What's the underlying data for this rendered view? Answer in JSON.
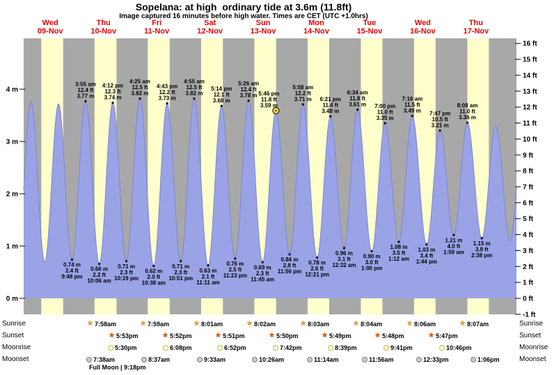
{
  "chart_data": {
    "type": "area",
    "title": "Sopelana: at high  ordinary tide at 3.6m (11.8ft)",
    "subtitle": "Image captured 16 minutes before high water. Times are CET (UTC +1.0hrs)",
    "ylabel_left_unit": "m",
    "ylabel_right_unit": "ft",
    "ylim_m": [
      0,
      4
    ],
    "y_axis_left_ticks": [
      "4 m",
      "3 m",
      "2 m",
      "1 m",
      "0 m"
    ],
    "y_axis_right_ticks": [
      "16 ft",
      "15 ft",
      "14 ft",
      "13 ft",
      "12 ft",
      "11 ft",
      "10 ft",
      "9 ft",
      "8 ft",
      "7 ft",
      "6 ft",
      "5 ft",
      "4 ft",
      "3 ft",
      "2 ft",
      "1 ft",
      "0 ft",
      "-1 ft"
    ],
    "days": [
      {
        "dow": "Wed",
        "date": "09-Nov"
      },
      {
        "dow": "Thu",
        "date": "10-Nov"
      },
      {
        "dow": "Fri",
        "date": "11-Nov"
      },
      {
        "dow": "Sat",
        "date": "12-Nov"
      },
      {
        "dow": "Sun",
        "date": "13-Nov"
      },
      {
        "dow": "Mon",
        "date": "14-Nov"
      },
      {
        "dow": "Tue",
        "date": "15-Nov"
      },
      {
        "dow": "Wed",
        "date": "16-Nov"
      },
      {
        "dow": "Thu",
        "date": "17-Nov"
      }
    ],
    "tide_events": [
      {
        "day": 0,
        "time": "9:48 pm",
        "m": "0.74",
        "ft": "2.4",
        "type": "low"
      },
      {
        "day": 1,
        "time": "3:55 am",
        "m": "3.77",
        "ft": "12.4",
        "type": "high"
      },
      {
        "day": 1,
        "time": "10:06 am",
        "m": "0.66",
        "ft": "2.2",
        "type": "low"
      },
      {
        "day": 1,
        "time": "4:12 pm",
        "m": "3.74",
        "ft": "12.3",
        "type": "high"
      },
      {
        "day": 1,
        "time": "10:19 pm",
        "m": "0.71",
        "ft": "2.3",
        "type": "low"
      },
      {
        "day": 2,
        "time": "4:25 am",
        "m": "3.82",
        "ft": "12.5",
        "type": "high"
      },
      {
        "day": 2,
        "time": "10:38 am",
        "m": "0.62",
        "ft": "2.0",
        "type": "low"
      },
      {
        "day": 2,
        "time": "4:43 pm",
        "m": "3.73",
        "ft": "12.2",
        "type": "high"
      },
      {
        "day": 2,
        "time": "10:51 pm",
        "m": "0.71",
        "ft": "2.3",
        "type": "low"
      },
      {
        "day": 3,
        "time": "4:55 am",
        "m": "3.82",
        "ft": "12.5",
        "type": "high"
      },
      {
        "day": 3,
        "time": "11:11 am",
        "m": "0.63",
        "ft": "2.1",
        "type": "low"
      },
      {
        "day": 3,
        "time": "5:14 pm",
        "m": "3.68",
        "ft": "12.1",
        "type": "high"
      },
      {
        "day": 3,
        "time": "11:23 pm",
        "m": "0.76",
        "ft": "2.5",
        "type": "low"
      },
      {
        "day": 4,
        "time": "5:26 am",
        "m": "3.78",
        "ft": "12.4",
        "type": "high"
      },
      {
        "day": 4,
        "time": "11:45 am",
        "m": "0.69",
        "ft": "2.3",
        "type": "low"
      },
      {
        "day": 4,
        "time": "5:46 pm",
        "m": "3.59",
        "ft": "11.8",
        "type": "high",
        "current": true
      },
      {
        "day": 4,
        "time": "11:56 pm",
        "m": "0.84",
        "ft": "2.8",
        "type": "low"
      },
      {
        "day": 5,
        "time": "5:58 am",
        "m": "3.71",
        "ft": "12.2",
        "type": "high"
      },
      {
        "day": 5,
        "time": "12:21 pm",
        "m": "0.78",
        "ft": "2.6",
        "type": "low"
      },
      {
        "day": 5,
        "time": "6:21 pm",
        "m": "3.48",
        "ft": "11.4",
        "type": "high"
      },
      {
        "day": 6,
        "time": "12:32 am",
        "m": "0.96",
        "ft": "3.1",
        "type": "low"
      },
      {
        "day": 6,
        "time": "6:34 am",
        "m": "3.61",
        "ft": "11.8",
        "type": "high"
      },
      {
        "day": 6,
        "time": "1:00 pm",
        "m": "0.90",
        "ft": "3.0",
        "type": "low"
      },
      {
        "day": 6,
        "time": "7:00 pm",
        "m": "3.35",
        "ft": "11.0",
        "type": "high"
      },
      {
        "day": 7,
        "time": "1:12 am",
        "m": "1.08",
        "ft": "3.5",
        "type": "low"
      },
      {
        "day": 7,
        "time": "7:16 am",
        "m": "3.49",
        "ft": "11.5",
        "type": "high"
      },
      {
        "day": 7,
        "time": "1:44 pm",
        "m": "1.03",
        "ft": "3.4",
        "type": "low"
      },
      {
        "day": 7,
        "time": "7:47 pm",
        "m": "3.21",
        "ft": "10.5",
        "type": "high"
      },
      {
        "day": 8,
        "time": "1:59 am",
        "m": "1.21",
        "ft": "4.0",
        "type": "low"
      },
      {
        "day": 8,
        "time": "8:08 am",
        "m": "3.36",
        "ft": "11.0",
        "type": "high"
      },
      {
        "day": 8,
        "time": "2:38 pm",
        "m": "1.15",
        "ft": "3.8",
        "type": "low"
      }
    ],
    "colors": {
      "plot_bg": "#a8a8a8",
      "daylight_band": "#ffffcc",
      "tide_fill": "#9aa3e6",
      "tide_stroke": "#7b85d4",
      "day_label": "#e80000",
      "current_marker_fill": "#ffe14d"
    }
  },
  "astro": {
    "rows": [
      {
        "id": "sunrise",
        "label": "Sunrise",
        "icon": "sunrise-star-icon",
        "events": [
          {
            "day": 1,
            "time": "7:58am"
          },
          {
            "day": 2,
            "time": "7:59am"
          },
          {
            "day": 3,
            "time": "8:01am"
          },
          {
            "day": 4,
            "time": "8:02am"
          },
          {
            "day": 5,
            "time": "8:03am"
          },
          {
            "day": 6,
            "time": "8:04am"
          },
          {
            "day": 7,
            "time": "8:06am"
          },
          {
            "day": 8,
            "time": "8:07am"
          }
        ]
      },
      {
        "id": "sunset",
        "label": "Sunset",
        "icon": "sunset-star-icon",
        "events": [
          {
            "day": 1,
            "time": "5:53pm"
          },
          {
            "day": 2,
            "time": "5:52pm"
          },
          {
            "day": 3,
            "time": "5:51pm"
          },
          {
            "day": 4,
            "time": "5:50pm"
          },
          {
            "day": 5,
            "time": "5:49pm"
          },
          {
            "day": 6,
            "time": "5:48pm"
          },
          {
            "day": 7,
            "time": "5:47pm"
          }
        ]
      },
      {
        "id": "moonrise",
        "label": "Moonrise",
        "icon": "moonrise-circle-icon",
        "events": [
          {
            "day": 1,
            "time": "5:30pm"
          },
          {
            "day": 2,
            "time": "6:08pm"
          },
          {
            "day": 3,
            "time": "6:52pm"
          },
          {
            "day": 4,
            "time": "7:42pm"
          },
          {
            "day": 5,
            "time": "8:39pm"
          },
          {
            "day": 6,
            "time": "9:41pm"
          },
          {
            "day": 7,
            "time": "10:46pm"
          }
        ]
      },
      {
        "id": "moonset",
        "label": "Moonset",
        "icon": "moonset-circle-icon",
        "events": [
          {
            "day": 1,
            "time": "7:38am"
          },
          {
            "day": 2,
            "time": "8:37am"
          },
          {
            "day": 3,
            "time": "9:33am"
          },
          {
            "day": 4,
            "time": "10:26am"
          },
          {
            "day": 5,
            "time": "11:14am"
          },
          {
            "day": 6,
            "time": "11:56am"
          },
          {
            "day": 7,
            "time": "12:33pm"
          },
          {
            "day": 8,
            "time": "1:06pm"
          }
        ]
      }
    ],
    "footnote": "Full Moon | 9:18pm"
  }
}
